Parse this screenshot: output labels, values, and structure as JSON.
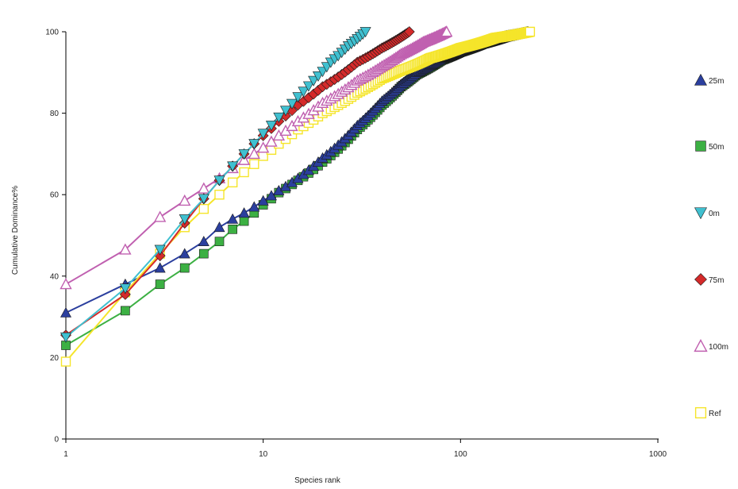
{
  "chart_data": {
    "type": "line",
    "title": "",
    "xlabel": "Species rank",
    "ylabel": "Cumulative Dominance%",
    "x_scale": "log",
    "xlim": [
      1,
      1000
    ],
    "ylim": [
      0,
      100
    ],
    "x_ticks": [
      "1",
      "10",
      "100",
      "1000"
    ],
    "y_ticks": [
      "0",
      "20",
      "40",
      "60",
      "80",
      "100"
    ],
    "grid": false,
    "legend_position": "right",
    "series": [
      {
        "name": "25m",
        "color": "#2b3f9e",
        "marker": "triangle-up-filled",
        "max_rank": 220,
        "points": [
          [
            1,
            31
          ],
          [
            2,
            38
          ],
          [
            3,
            42
          ],
          [
            4,
            45.5
          ],
          [
            5,
            48.5
          ],
          [
            6,
            52
          ],
          [
            7,
            54
          ],
          [
            8,
            55.5
          ],
          [
            9,
            57
          ],
          [
            10,
            58.5
          ],
          [
            12,
            61
          ],
          [
            15,
            64
          ],
          [
            20,
            69
          ],
          [
            30,
            77
          ],
          [
            40,
            83
          ],
          [
            50,
            87
          ],
          [
            60,
            90
          ],
          [
            80,
            93.5
          ],
          [
            100,
            95.5
          ],
          [
            130,
            97.5
          ],
          [
            170,
            99
          ],
          [
            220,
            100
          ]
        ]
      },
      {
        "name": "50m",
        "color": "#3cb043",
        "marker": "square-filled",
        "max_rank": 220,
        "points": [
          [
            1,
            23
          ],
          [
            2,
            31.5
          ],
          [
            3,
            38
          ],
          [
            4,
            42
          ],
          [
            5,
            45.5
          ],
          [
            6,
            48.5
          ],
          [
            7,
            51.5
          ],
          [
            8,
            53.5
          ],
          [
            9,
            55.5
          ],
          [
            10,
            57.5
          ],
          [
            12,
            60.5
          ],
          [
            15,
            63.5
          ],
          [
            20,
            68
          ],
          [
            25,
            72
          ],
          [
            30,
            76
          ],
          [
            40,
            82
          ],
          [
            50,
            86.5
          ],
          [
            60,
            89.5
          ],
          [
            80,
            93
          ],
          [
            100,
            95
          ],
          [
            130,
            97
          ],
          [
            170,
            98.7
          ],
          [
            220,
            100
          ]
        ]
      },
      {
        "name": "0m",
        "color": "#40c0d0",
        "marker": "triangle-down-filled",
        "max_rank": 33,
        "points": [
          [
            1,
            25
          ],
          [
            2,
            37
          ],
          [
            3,
            46.5
          ],
          [
            4,
            54
          ],
          [
            5,
            59
          ],
          [
            6,
            63.5
          ],
          [
            7,
            67
          ],
          [
            8,
            70
          ],
          [
            9,
            72.5
          ],
          [
            10,
            75
          ],
          [
            12,
            79
          ],
          [
            15,
            84
          ],
          [
            18,
            88
          ],
          [
            22,
            92.5
          ],
          [
            27,
            96.5
          ],
          [
            33,
            100
          ]
        ]
      },
      {
        "name": "75m",
        "color": "#d42a2a",
        "marker": "diamond-filled",
        "max_rank": 55,
        "points": [
          [
            1,
            25.5
          ],
          [
            2,
            35.5
          ],
          [
            3,
            45
          ],
          [
            4,
            53
          ],
          [
            5,
            59
          ],
          [
            6,
            63.5
          ],
          [
            7,
            67
          ],
          [
            8,
            70
          ],
          [
            9,
            72.5
          ],
          [
            10,
            74.5
          ],
          [
            12,
            78
          ],
          [
            15,
            82
          ],
          [
            20,
            86.5
          ],
          [
            25,
            89.5
          ],
          [
            30,
            92.5
          ],
          [
            40,
            96
          ],
          [
            55,
            100
          ]
        ]
      },
      {
        "name": "100m",
        "color": "#c060b0",
        "marker": "triangle-up-open",
        "max_rank": 85,
        "points": [
          [
            1,
            38
          ],
          [
            2,
            46.5
          ],
          [
            3,
            54.5
          ],
          [
            4,
            58.5
          ],
          [
            5,
            61.5
          ],
          [
            6,
            64
          ],
          [
            7,
            66.5
          ],
          [
            8,
            68.5
          ],
          [
            9,
            70
          ],
          [
            10,
            71.5
          ],
          [
            12,
            74.5
          ],
          [
            15,
            78
          ],
          [
            20,
            82.5
          ],
          [
            30,
            88
          ],
          [
            40,
            91.5
          ],
          [
            50,
            94.5
          ],
          [
            65,
            97.5
          ],
          [
            85,
            100
          ]
        ]
      },
      {
        "name": "Ref",
        "color": "#f5e52a",
        "marker": "square-open",
        "max_rank": 225,
        "points": [
          [
            1,
            19
          ],
          [
            2,
            36
          ],
          [
            3,
            45.5
          ],
          [
            4,
            52
          ],
          [
            5,
            56.5
          ],
          [
            6,
            60
          ],
          [
            7,
            63
          ],
          [
            8,
            65.5
          ],
          [
            9,
            67.5
          ],
          [
            10,
            69.5
          ],
          [
            12,
            72.5
          ],
          [
            15,
            76
          ],
          [
            20,
            80
          ],
          [
            30,
            85
          ],
          [
            40,
            88.5
          ],
          [
            50,
            90.5
          ],
          [
            70,
            93.5
          ],
          [
            100,
            96
          ],
          [
            150,
            98.5
          ],
          [
            225,
            100
          ]
        ]
      }
    ]
  }
}
